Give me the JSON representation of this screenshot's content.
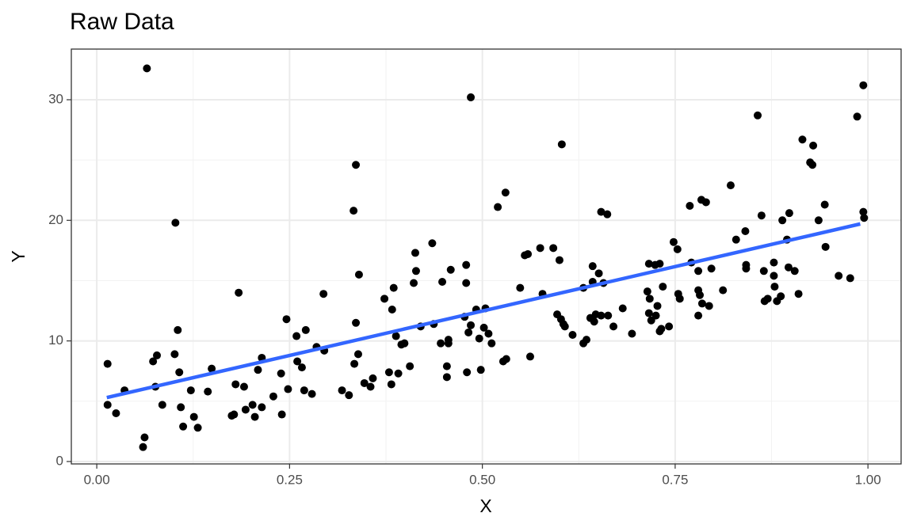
{
  "chart_data": {
    "type": "scatter",
    "title": "Raw Data",
    "x_label": "X",
    "y_label": "Y",
    "x": [
      0.014,
      0.014,
      0.025,
      0.036,
      0.065,
      0.062,
      0.06,
      0.073,
      0.076,
      0.078,
      0.085,
      0.102,
      0.101,
      0.105,
      0.107,
      0.109,
      0.112,
      0.122,
      0.126,
      0.131,
      0.144,
      0.149,
      0.175,
      0.178,
      0.18,
      0.184,
      0.191,
      0.193,
      0.202,
      0.205,
      0.209,
      0.214,
      0.214,
      0.229,
      0.239,
      0.24,
      0.246,
      0.248,
      0.259,
      0.26,
      0.266,
      0.269,
      0.271,
      0.279,
      0.285,
      0.294,
      0.295,
      0.318,
      0.327,
      0.333,
      0.334,
      0.336,
      0.336,
      0.339,
      0.34,
      0.347,
      0.355,
      0.358,
      0.373,
      0.379,
      0.382,
      0.383,
      0.385,
      0.388,
      0.391,
      0.395,
      0.399,
      0.406,
      0.411,
      0.414,
      0.413,
      0.42,
      0.435,
      0.437,
      0.446,
      0.448,
      0.454,
      0.454,
      0.456,
      0.456,
      0.459,
      0.477,
      0.479,
      0.48,
      0.479,
      0.482,
      0.485,
      0.485,
      0.492,
      0.496,
      0.498,
      0.502,
      0.504,
      0.508,
      0.512,
      0.52,
      0.527,
      0.53,
      0.531,
      0.549,
      0.555,
      0.559,
      0.562,
      0.575,
      0.578,
      0.592,
      0.597,
      0.6,
      0.603,
      0.602,
      0.605,
      0.607,
      0.617,
      0.631,
      0.631,
      0.635,
      0.64,
      0.643,
      0.643,
      0.645,
      0.647,
      0.651,
      0.654,
      0.654,
      0.657,
      0.662,
      0.663,
      0.67,
      0.682,
      0.694,
      0.714,
      0.716,
      0.717,
      0.716,
      0.719,
      0.725,
      0.727,
      0.73,
      0.724,
      0.73,
      0.732,
      0.734,
      0.742,
      0.748,
      0.753,
      0.754,
      0.756,
      0.769,
      0.771,
      0.78,
      0.78,
      0.78,
      0.782,
      0.784,
      0.785,
      0.79,
      0.794,
      0.797,
      0.812,
      0.822,
      0.829,
      0.841,
      0.842,
      0.842,
      0.857,
      0.862,
      0.865,
      0.866,
      0.87,
      0.878,
      0.878,
      0.879,
      0.882,
      0.887,
      0.889,
      0.895,
      0.897,
      0.898,
      0.905,
      0.91,
      0.915,
      0.929,
      0.925,
      0.928,
      0.936,
      0.944,
      0.945,
      0.962,
      0.977,
      0.986,
      0.994,
      0.994,
      0.995
    ],
    "values": [
      8.1,
      4.7,
      4.0,
      5.9,
      32.6,
      2.0,
      1.2,
      8.3,
      6.2,
      8.8,
      4.7,
      19.8,
      8.9,
      10.9,
      7.4,
      4.5,
      2.9,
      5.9,
      3.7,
      2.8,
      5.8,
      7.7,
      3.8,
      3.9,
      6.4,
      14.0,
      6.2,
      4.3,
      4.7,
      3.7,
      7.6,
      8.6,
      4.5,
      5.4,
      7.3,
      3.9,
      11.8,
      6.0,
      10.4,
      8.3,
      7.8,
      5.9,
      10.9,
      5.6,
      9.5,
      13.9,
      9.2,
      5.9,
      5.5,
      20.8,
      8.1,
      24.6,
      11.5,
      8.9,
      15.5,
      6.5,
      6.2,
      6.9,
      13.5,
      7.4,
      6.4,
      12.6,
      14.4,
      10.4,
      7.3,
      9.7,
      9.8,
      7.9,
      14.8,
      15.8,
      17.3,
      11.2,
      18.1,
      11.4,
      9.8,
      14.9,
      7.0,
      7.9,
      9.8,
      10.1,
      15.9,
      12.0,
      16.3,
      7.4,
      14.8,
      10.7,
      30.2,
      11.3,
      12.6,
      10.2,
      7.6,
      11.1,
      12.7,
      10.6,
      9.8,
      21.1,
      8.3,
      22.3,
      8.5,
      14.4,
      17.1,
      17.2,
      8.7,
      17.7,
      13.9,
      17.7,
      12.2,
      16.7,
      26.3,
      11.8,
      11.4,
      11.2,
      10.5,
      9.8,
      14.4,
      10.1,
      11.9,
      16.2,
      14.9,
      11.6,
      12.2,
      15.6,
      20.7,
      12.1,
      14.8,
      20.5,
      12.1,
      11.2,
      12.7,
      10.6,
      14.1,
      12.3,
      13.5,
      16.4,
      11.7,
      12.1,
      12.9,
      10.8,
      16.3,
      16.4,
      11.0,
      14.5,
      11.2,
      18.2,
      17.6,
      13.9,
      13.5,
      21.2,
      16.5,
      12.1,
      15.8,
      14.2,
      13.8,
      21.7,
      13.1,
      21.5,
      12.9,
      16.0,
      14.2,
      22.9,
      18.4,
      19.1,
      16.3,
      16.0,
      28.7,
      20.4,
      15.8,
      13.3,
      13.5,
      16.5,
      15.4,
      14.5,
      13.3,
      13.7,
      20.0,
      18.4,
      16.1,
      20.6,
      15.8,
      13.9,
      26.7,
      26.2,
      24.8,
      24.6,
      20.0,
      21.3,
      17.8,
      15.4,
      15.2,
      28.6,
      31.2,
      20.7,
      20.2
    ],
    "color": "#000000",
    "trend": {
      "x": [
        0.013,
        0.99
      ],
      "values": [
        5.3,
        19.7
      ],
      "color": "#3366ff"
    },
    "xlim": [
      -0.033,
      1.043
    ],
    "ylim": [
      -0.2,
      34.2
    ],
    "xticks": [
      {
        "value": 0,
        "label": "0.00"
      },
      0.25,
      {
        "value": 0.5,
        "label": "0.50"
      },
      0.75,
      {
        "value": 1,
        "label": "1.00"
      }
    ],
    "yticks": [
      0,
      10,
      20,
      30
    ],
    "xminor": [
      0.125,
      0.375,
      0.625,
      0.875
    ],
    "yminor": [
      5,
      15,
      25
    ],
    "grid": true
  }
}
